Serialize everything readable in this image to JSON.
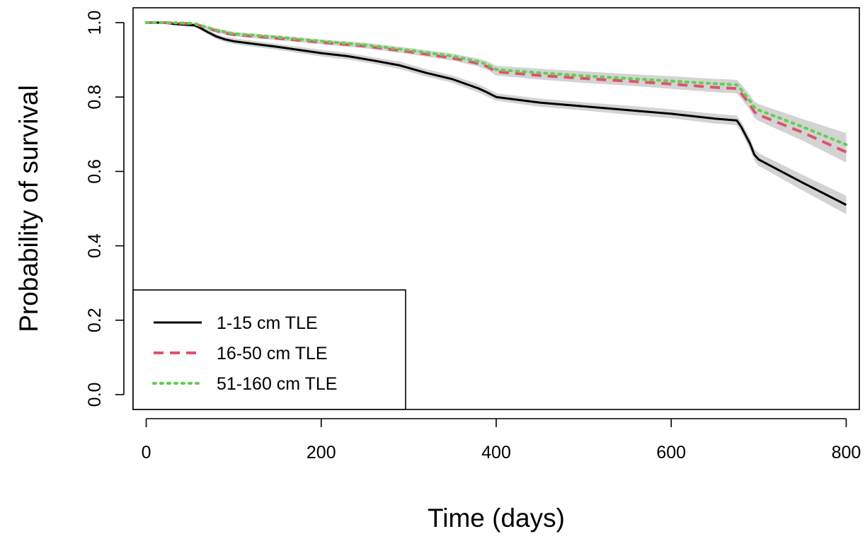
{
  "chart_data": {
    "type": "line",
    "title": "",
    "xlabel": "Time (days)",
    "ylabel": "Probability of survival",
    "xlim": [
      -15,
      815
    ],
    "ylim": [
      -0.04,
      1.04
    ],
    "xticks": [
      0,
      200,
      400,
      600,
      800
    ],
    "xtick_labels": [
      "0",
      "200",
      "400",
      "600",
      "800"
    ],
    "yticks": [
      0.0,
      0.2,
      0.4,
      0.6,
      0.8,
      1.0
    ],
    "ytick_labels": [
      "0.0",
      "0.2",
      "0.4",
      "0.6",
      "0.8",
      "1.0"
    ],
    "grid": false,
    "legend_position": "bottom-left",
    "series": [
      {
        "name": "1-15 cm TLE",
        "color": "#000000",
        "style": "solid",
        "x": [
          0,
          20,
          30,
          55,
          60,
          70,
          80,
          90,
          100,
          150,
          200,
          230,
          260,
          290,
          320,
          350,
          380,
          390,
          400,
          450,
          500,
          550,
          600,
          650,
          675,
          680,
          690,
          695,
          700,
          750,
          800
        ],
        "y": [
          1.0,
          1.0,
          0.997,
          0.993,
          0.988,
          0.975,
          0.963,
          0.955,
          0.95,
          0.935,
          0.918,
          0.91,
          0.898,
          0.885,
          0.865,
          0.848,
          0.823,
          0.812,
          0.8,
          0.785,
          0.775,
          0.765,
          0.755,
          0.742,
          0.737,
          0.72,
          0.675,
          0.645,
          0.632,
          0.57,
          0.51
        ],
        "ci_upper": [
          1.0,
          1.0,
          1.0,
          0.998,
          0.993,
          0.981,
          0.97,
          0.962,
          0.958,
          0.943,
          0.927,
          0.919,
          0.907,
          0.895,
          0.875,
          0.858,
          0.834,
          0.823,
          0.81,
          0.796,
          0.786,
          0.777,
          0.767,
          0.755,
          0.75,
          0.734,
          0.69,
          0.661,
          0.649,
          0.591,
          0.535
        ],
        "ci_lower": [
          1.0,
          1.0,
          0.993,
          0.988,
          0.983,
          0.969,
          0.956,
          0.948,
          0.942,
          0.927,
          0.909,
          0.901,
          0.889,
          0.875,
          0.855,
          0.838,
          0.812,
          0.801,
          0.79,
          0.774,
          0.764,
          0.753,
          0.743,
          0.729,
          0.724,
          0.706,
          0.66,
          0.629,
          0.615,
          0.549,
          0.485
        ]
      },
      {
        "name": "16-50 cm TLE",
        "color": "#DF536B",
        "style": "dashed",
        "x": [
          0,
          20,
          30,
          55,
          60,
          70,
          80,
          90,
          100,
          150,
          200,
          250,
          300,
          350,
          380,
          390,
          400,
          450,
          500,
          550,
          600,
          650,
          675,
          680,
          690,
          695,
          700,
          750,
          800
        ],
        "y": [
          1.0,
          1.0,
          0.999,
          0.997,
          0.993,
          0.985,
          0.978,
          0.972,
          0.968,
          0.958,
          0.947,
          0.937,
          0.922,
          0.905,
          0.89,
          0.882,
          0.868,
          0.858,
          0.85,
          0.843,
          0.835,
          0.826,
          0.823,
          0.81,
          0.78,
          0.76,
          0.752,
          0.705,
          0.652
        ],
        "ci_upper": [
          1.0,
          1.0,
          1.0,
          1.0,
          0.997,
          0.989,
          0.982,
          0.977,
          0.973,
          0.963,
          0.952,
          0.943,
          0.928,
          0.912,
          0.898,
          0.891,
          0.878,
          0.869,
          0.862,
          0.855,
          0.848,
          0.839,
          0.836,
          0.824,
          0.795,
          0.776,
          0.768,
          0.727,
          0.68
        ],
        "ci_lower": [
          1.0,
          1.0,
          0.997,
          0.993,
          0.989,
          0.981,
          0.974,
          0.967,
          0.963,
          0.953,
          0.942,
          0.931,
          0.916,
          0.898,
          0.882,
          0.873,
          0.858,
          0.847,
          0.838,
          0.831,
          0.822,
          0.813,
          0.81,
          0.796,
          0.765,
          0.744,
          0.736,
          0.683,
          0.624
        ]
      },
      {
        "name": "51-160 cm TLE",
        "color": "#61D04F",
        "style": "dotted",
        "x": [
          0,
          20,
          30,
          55,
          60,
          70,
          80,
          90,
          100,
          150,
          200,
          250,
          300,
          350,
          380,
          390,
          400,
          450,
          500,
          550,
          600,
          650,
          675,
          680,
          690,
          695,
          700,
          750,
          800
        ],
        "y": [
          1.0,
          1.0,
          1.0,
          0.998,
          0.994,
          0.987,
          0.98,
          0.975,
          0.97,
          0.961,
          0.95,
          0.94,
          0.926,
          0.91,
          0.895,
          0.887,
          0.874,
          0.865,
          0.857,
          0.85,
          0.843,
          0.836,
          0.833,
          0.82,
          0.79,
          0.772,
          0.765,
          0.72,
          0.672
        ],
        "ci_upper": [
          1.0,
          1.0,
          1.0,
          1.0,
          0.998,
          0.991,
          0.985,
          0.98,
          0.975,
          0.966,
          0.955,
          0.946,
          0.932,
          0.917,
          0.903,
          0.896,
          0.884,
          0.876,
          0.869,
          0.862,
          0.856,
          0.849,
          0.846,
          0.834,
          0.805,
          0.788,
          0.781,
          0.741,
          0.703
        ],
        "ci_lower": [
          1.0,
          1.0,
          1.0,
          0.995,
          0.99,
          0.983,
          0.975,
          0.97,
          0.965,
          0.956,
          0.945,
          0.934,
          0.92,
          0.903,
          0.887,
          0.878,
          0.864,
          0.854,
          0.845,
          0.838,
          0.83,
          0.823,
          0.82,
          0.806,
          0.775,
          0.756,
          0.749,
          0.699,
          0.641
        ]
      }
    ]
  }
}
